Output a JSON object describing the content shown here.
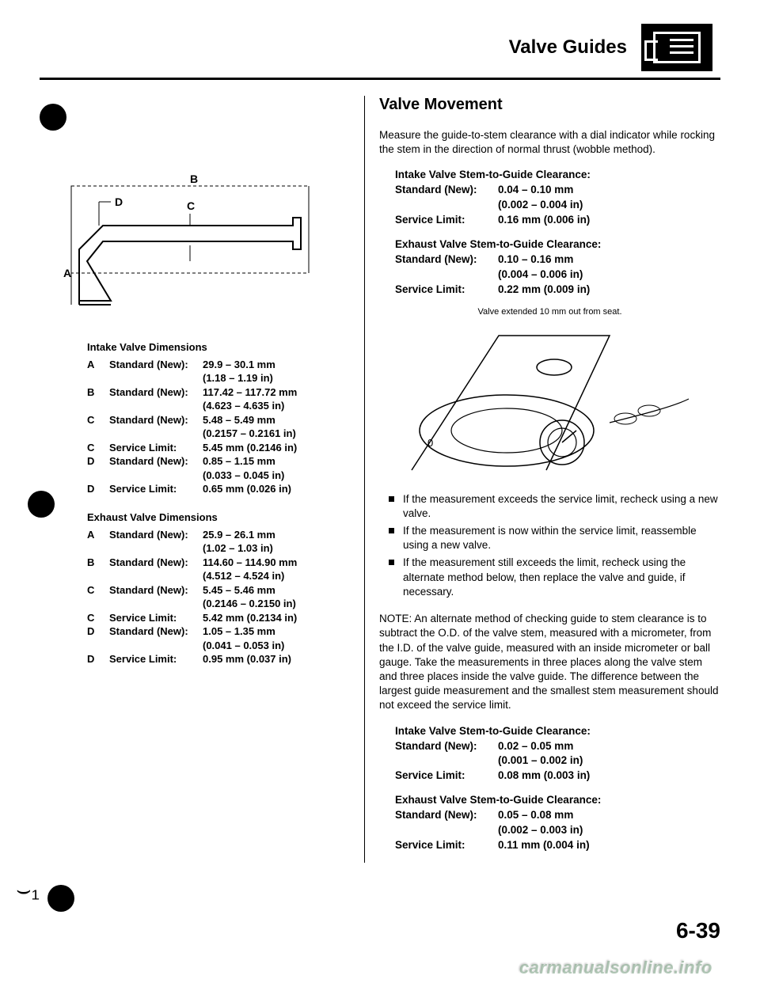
{
  "header": {
    "title": "Valve Guides"
  },
  "intake_dims": {
    "heading": "Intake Valve Dimensions",
    "rows": [
      {
        "k": "A",
        "key": "Standard (New):",
        "v1": "29.9 – 30.1 mm",
        "v2": "(1.18 – 1.19 in)"
      },
      {
        "k": "B",
        "key": "Standard (New):",
        "v1": "117.42 – 117.72 mm",
        "v2": "(4.623 – 4.635 in)"
      },
      {
        "k": "C",
        "key": "Standard (New):",
        "v1": "5.48 – 5.49 mm",
        "v2": "(0.2157 – 0.2161 in)"
      },
      {
        "k": "C",
        "key": "Service Limit:",
        "v1": "5.45 mm (0.2146 in)",
        "v2": ""
      },
      {
        "k": "D",
        "key": "Standard (New):",
        "v1": "0.85 – 1.15 mm",
        "v2": "(0.033 – 0.045 in)"
      },
      {
        "k": "D",
        "key": "Service Limit:",
        "v1": "0.65 mm (0.026 in)",
        "v2": ""
      }
    ]
  },
  "exhaust_dims": {
    "heading": "Exhaust Valve Dimensions",
    "rows": [
      {
        "k": "A",
        "key": "Standard (New):",
        "v1": "25.9 – 26.1 mm",
        "v2": "(1.02 – 1.03 in)"
      },
      {
        "k": "B",
        "key": "Standard (New):",
        "v1": "114.60 – 114.90 mm",
        "v2": "(4.512 – 4.524 in)"
      },
      {
        "k": "C",
        "key": "Standard (New):",
        "v1": "5.45 – 5.46 mm",
        "v2": "(0.2146 – 0.2150 in)"
      },
      {
        "k": "C",
        "key": "Service Limit:",
        "v1": "5.42 mm (0.2134 in)",
        "v2": ""
      },
      {
        "k": "D",
        "key": "Standard (New):",
        "v1": "1.05 – 1.35 mm",
        "v2": "(0.041 – 0.053 in)"
      },
      {
        "k": "D",
        "key": "Service Limit:",
        "v1": "0.95 mm (0.037 in)",
        "v2": ""
      }
    ]
  },
  "right": {
    "subheading": "Valve Movement",
    "intro": "Measure the guide-to-stem clearance with a dial indicator while rocking the stem in the direction of normal thrust (wobble method).",
    "intake_clr": {
      "hdr": "Intake Valve Stem-to-Guide Clearance:",
      "std": "0.04 – 0.10 mm",
      "std2": "(0.002 – 0.004 in)",
      "lim": "0.16 mm (0.006 in)"
    },
    "exhaust_clr": {
      "hdr": "Exhaust Valve Stem-to-Guide Clearance:",
      "std": "0.10 – 0.16 mm",
      "std2": "(0.004 – 0.006 in)",
      "lim": "0.22 mm (0.009 in)"
    },
    "caption": "Valve extended 10 mm out from seat.",
    "bullets": [
      "If the measurement exceeds the service limit, recheck using a new valve.",
      "If the measurement is now within the service limit, reassemble using a new valve.",
      "If the measurement still exceeds the limit, recheck using the alternate method below, then replace the valve and guide, if necessary."
    ],
    "note": "NOTE: An alternate method of checking guide to stem clearance is to subtract the O.D. of the valve stem, measured with a micrometer, from the I.D. of the valve guide, measured with an inside micrometer or ball gauge. Take the measurements in three places along the valve stem and three places inside the valve guide. The difference between the largest guide measurement and the smallest stem measurement should not exceed the service limit.",
    "intake_clr2": {
      "hdr": "Intake Valve Stem-to-Guide Clearance:",
      "std": "0.02 – 0.05 mm",
      "std2": "(0.001 – 0.002 in)",
      "lim": "0.08 mm (0.003 in)"
    },
    "exhaust_clr2": {
      "hdr": "Exhaust Valve Stem-to-Guide Clearance:",
      "std": "0.05 – 0.08 mm",
      "std2": "(0.002 – 0.003 in)",
      "lim": "0.11 mm (0.004 in)"
    }
  },
  "labels": {
    "std_new": "Standard (New):",
    "svc_lim": "Service Limit:"
  },
  "page_num": "6-39",
  "watermark": "carmanualsonline.info",
  "diagram_labels": {
    "A": "A",
    "B": "B",
    "C": "C",
    "D": "D"
  }
}
